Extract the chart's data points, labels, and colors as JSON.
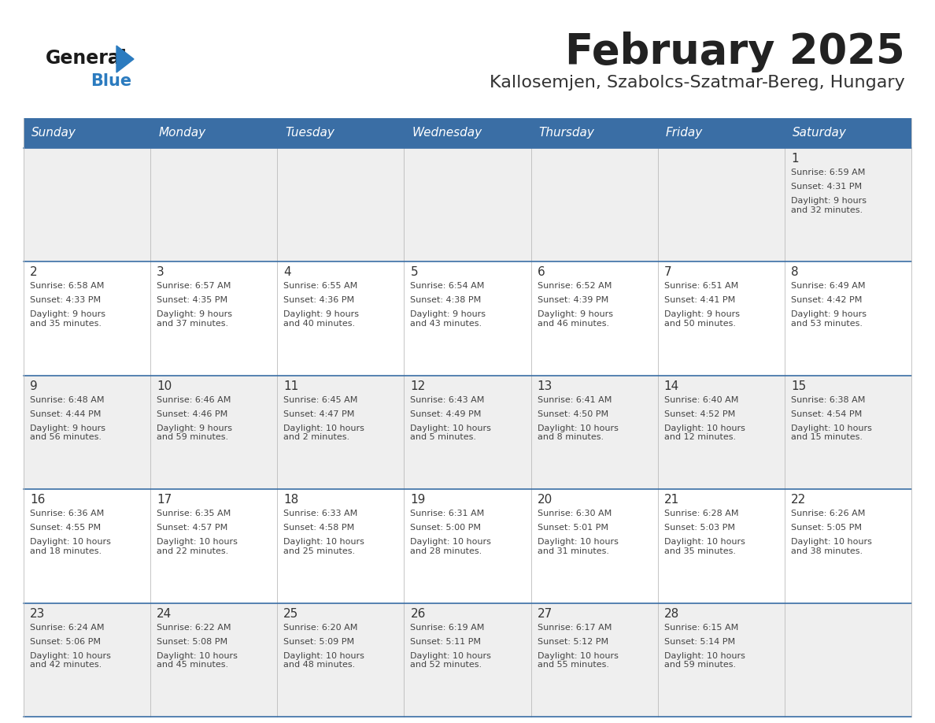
{
  "title": "February 2025",
  "subtitle": "Kallosemjen, Szabolcs-Szatmar-Bereg, Hungary",
  "days_of_week": [
    "Sunday",
    "Monday",
    "Tuesday",
    "Wednesday",
    "Thursday",
    "Friday",
    "Saturday"
  ],
  "header_bg": "#3a6ea5",
  "header_text_color": "#ffffff",
  "row_bg_odd": "#efefef",
  "row_bg_even": "#ffffff",
  "cell_border_color": "#3a6ea5",
  "cell_divider_color": "#bbbbbb",
  "day_number_color": "#333333",
  "text_color": "#444444",
  "title_color": "#222222",
  "subtitle_color": "#333333",
  "logo_general_color": "#1a1a1a",
  "logo_blue_color": "#2b7bbf",
  "weeks": [
    [
      {
        "day": null,
        "sunrise": null,
        "sunset": null,
        "daylight": null
      },
      {
        "day": null,
        "sunrise": null,
        "sunset": null,
        "daylight": null
      },
      {
        "day": null,
        "sunrise": null,
        "sunset": null,
        "daylight": null
      },
      {
        "day": null,
        "sunrise": null,
        "sunset": null,
        "daylight": null
      },
      {
        "day": null,
        "sunrise": null,
        "sunset": null,
        "daylight": null
      },
      {
        "day": null,
        "sunrise": null,
        "sunset": null,
        "daylight": null
      },
      {
        "day": 1,
        "sunrise": "6:59 AM",
        "sunset": "4:31 PM",
        "daylight": "9 hours\nand 32 minutes."
      }
    ],
    [
      {
        "day": 2,
        "sunrise": "6:58 AM",
        "sunset": "4:33 PM",
        "daylight": "9 hours\nand 35 minutes."
      },
      {
        "day": 3,
        "sunrise": "6:57 AM",
        "sunset": "4:35 PM",
        "daylight": "9 hours\nand 37 minutes."
      },
      {
        "day": 4,
        "sunrise": "6:55 AM",
        "sunset": "4:36 PM",
        "daylight": "9 hours\nand 40 minutes."
      },
      {
        "day": 5,
        "sunrise": "6:54 AM",
        "sunset": "4:38 PM",
        "daylight": "9 hours\nand 43 minutes."
      },
      {
        "day": 6,
        "sunrise": "6:52 AM",
        "sunset": "4:39 PM",
        "daylight": "9 hours\nand 46 minutes."
      },
      {
        "day": 7,
        "sunrise": "6:51 AM",
        "sunset": "4:41 PM",
        "daylight": "9 hours\nand 50 minutes."
      },
      {
        "day": 8,
        "sunrise": "6:49 AM",
        "sunset": "4:42 PM",
        "daylight": "9 hours\nand 53 minutes."
      }
    ],
    [
      {
        "day": 9,
        "sunrise": "6:48 AM",
        "sunset": "4:44 PM",
        "daylight": "9 hours\nand 56 minutes."
      },
      {
        "day": 10,
        "sunrise": "6:46 AM",
        "sunset": "4:46 PM",
        "daylight": "9 hours\nand 59 minutes."
      },
      {
        "day": 11,
        "sunrise": "6:45 AM",
        "sunset": "4:47 PM",
        "daylight": "10 hours\nand 2 minutes."
      },
      {
        "day": 12,
        "sunrise": "6:43 AM",
        "sunset": "4:49 PM",
        "daylight": "10 hours\nand 5 minutes."
      },
      {
        "day": 13,
        "sunrise": "6:41 AM",
        "sunset": "4:50 PM",
        "daylight": "10 hours\nand 8 minutes."
      },
      {
        "day": 14,
        "sunrise": "6:40 AM",
        "sunset": "4:52 PM",
        "daylight": "10 hours\nand 12 minutes."
      },
      {
        "day": 15,
        "sunrise": "6:38 AM",
        "sunset": "4:54 PM",
        "daylight": "10 hours\nand 15 minutes."
      }
    ],
    [
      {
        "day": 16,
        "sunrise": "6:36 AM",
        "sunset": "4:55 PM",
        "daylight": "10 hours\nand 18 minutes."
      },
      {
        "day": 17,
        "sunrise": "6:35 AM",
        "sunset": "4:57 PM",
        "daylight": "10 hours\nand 22 minutes."
      },
      {
        "day": 18,
        "sunrise": "6:33 AM",
        "sunset": "4:58 PM",
        "daylight": "10 hours\nand 25 minutes."
      },
      {
        "day": 19,
        "sunrise": "6:31 AM",
        "sunset": "5:00 PM",
        "daylight": "10 hours\nand 28 minutes."
      },
      {
        "day": 20,
        "sunrise": "6:30 AM",
        "sunset": "5:01 PM",
        "daylight": "10 hours\nand 31 minutes."
      },
      {
        "day": 21,
        "sunrise": "6:28 AM",
        "sunset": "5:03 PM",
        "daylight": "10 hours\nand 35 minutes."
      },
      {
        "day": 22,
        "sunrise": "6:26 AM",
        "sunset": "5:05 PM",
        "daylight": "10 hours\nand 38 minutes."
      }
    ],
    [
      {
        "day": 23,
        "sunrise": "6:24 AM",
        "sunset": "5:06 PM",
        "daylight": "10 hours\nand 42 minutes."
      },
      {
        "day": 24,
        "sunrise": "6:22 AM",
        "sunset": "5:08 PM",
        "daylight": "10 hours\nand 45 minutes."
      },
      {
        "day": 25,
        "sunrise": "6:20 AM",
        "sunset": "5:09 PM",
        "daylight": "10 hours\nand 48 minutes."
      },
      {
        "day": 26,
        "sunrise": "6:19 AM",
        "sunset": "5:11 PM",
        "daylight": "10 hours\nand 52 minutes."
      },
      {
        "day": 27,
        "sunrise": "6:17 AM",
        "sunset": "5:12 PM",
        "daylight": "10 hours\nand 55 minutes."
      },
      {
        "day": 28,
        "sunrise": "6:15 AM",
        "sunset": "5:14 PM",
        "daylight": "10 hours\nand 59 minutes."
      },
      {
        "day": null,
        "sunrise": null,
        "sunset": null,
        "daylight": null
      }
    ]
  ]
}
